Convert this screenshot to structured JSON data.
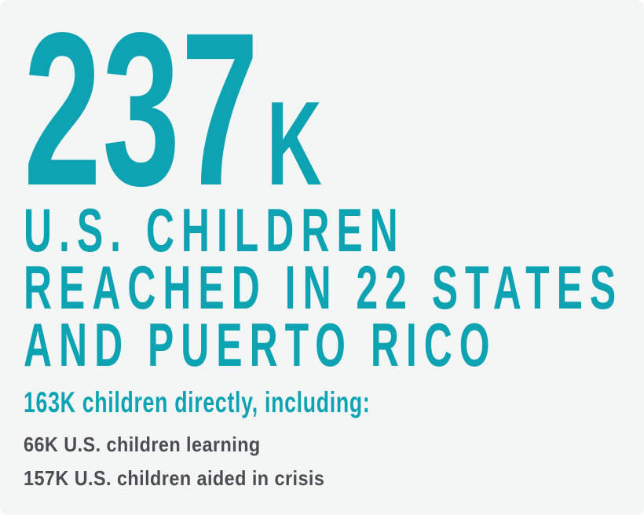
{
  "colors": {
    "teal": "#0ea3b3",
    "dark_gray": "#4d4d4f",
    "background": "#f4f5f5"
  },
  "stat": {
    "number": "237",
    "unit": "K",
    "headline_lines": [
      "U.S. CHILDREN",
      "REACHED IN 22 STATES",
      "AND PUERTO RICO"
    ],
    "subhead": "163K children directly, including:",
    "details": [
      "66K U.S. children learning",
      "157K U.S. children aided in crisis"
    ]
  },
  "chart_data": {
    "type": "table",
    "title": "237K U.S. children reached in 22 states and Puerto Rico",
    "categories": [
      "U.S. children reached in 22 states and Puerto Rico",
      "Children reached directly",
      "U.S. children learning",
      "U.S. children aided in crisis"
    ],
    "values": [
      237000,
      163000,
      66000,
      157000
    ],
    "legend": "none",
    "grid": false
  }
}
